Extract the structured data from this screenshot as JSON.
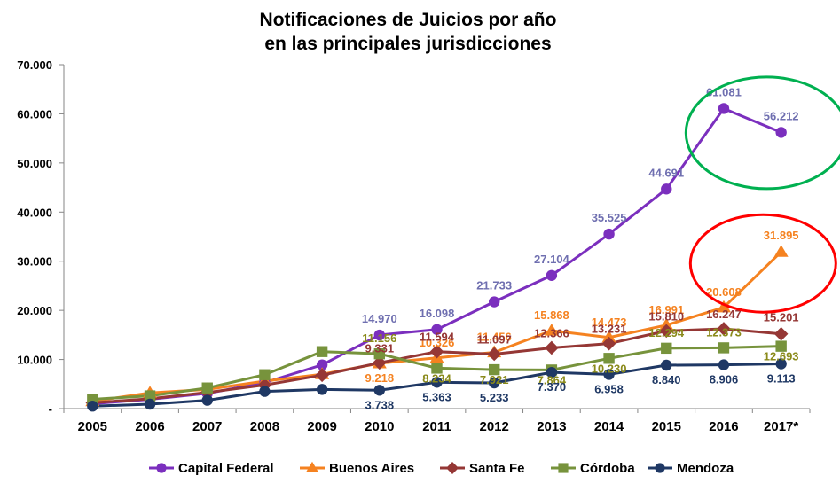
{
  "chart_data": {
    "type": "line",
    "title": [
      "Notificaciones de Juicios por año",
      "en las principales jurisdicciones"
    ],
    "categories": [
      "2005",
      "2006",
      "2007",
      "2008",
      "2009",
      "2010",
      "2011",
      "2012",
      "2013",
      "2014",
      "2015",
      "2016",
      "2017*"
    ],
    "ylim": [
      0,
      70000
    ],
    "yticks": [
      0,
      10000,
      20000,
      30000,
      40000,
      50000,
      60000,
      70000
    ],
    "ytick_labels": [
      "-",
      "10.000",
      "20.000",
      "30.000",
      "40.000",
      "50.000",
      "60.000",
      "70.000"
    ],
    "legend_position": "bottom",
    "series": [
      {
        "name": "Capital Federal",
        "color": "#7b2fbe",
        "label_color": "#6f6fb0",
        "marker": "circle",
        "values": [
          1000,
          1900,
          3100,
          5300,
          8900,
          14970,
          16098,
          21733,
          27104,
          35525,
          44691,
          61081,
          56212
        ],
        "labels": [
          "",
          "",
          "",
          "",
          "",
          "14.970",
          "16.098",
          "21.733",
          "27.104",
          "35.525",
          "44.691",
          "61.081",
          "56.212"
        ]
      },
      {
        "name": "Buenos Aires",
        "color": "#f58220",
        "label_color": "#f58220",
        "marker": "triangle",
        "values": [
          1500,
          3200,
          3900,
          5600,
          7000,
          9218,
          10326,
          11456,
          15868,
          14473,
          16991,
          20608,
          31895
        ],
        "labels": [
          "",
          "",
          "",
          "",
          "",
          "9.218",
          "10.326",
          "11.456",
          "15.868",
          "14.473",
          "16.991",
          "20.608",
          "31.895"
        ]
      },
      {
        "name": "Santa Fe",
        "color": "#953735",
        "label_color": "#953735",
        "marker": "diamond",
        "values": [
          1200,
          2000,
          3300,
          4800,
          6800,
          9331,
          11594,
          11097,
          12366,
          13231,
          15810,
          16247,
          15201
        ],
        "labels": [
          "",
          "",
          "",
          "",
          "",
          "9.331",
          "11.594",
          "11.097",
          "12.366",
          "13.231",
          "15.810",
          "16.247",
          "15.201"
        ]
      },
      {
        "name": "Córdoba",
        "color": "#77933c",
        "label_color": "#8a8a1a",
        "marker": "square",
        "values": [
          1900,
          2600,
          4200,
          6900,
          11600,
          11156,
          8234,
          7921,
          7864,
          10230,
          12294,
          12373,
          12693
        ],
        "labels": [
          "",
          "",
          "",
          "",
          "",
          "11.156",
          "8.234",
          "7.921",
          "7.864",
          "10.230",
          "12.294",
          "12.373",
          "12.693"
        ]
      },
      {
        "name": "Mendoza",
        "color": "#1f3864",
        "label_color": "#1f3864",
        "marker": "circle",
        "values": [
          500,
          900,
          1700,
          3500,
          3900,
          3738,
          5363,
          5233,
          7370,
          6958,
          8840,
          8906,
          9113
        ],
        "labels": [
          "",
          "",
          "",
          "",
          "",
          "3.738",
          "5.363",
          "5.233",
          "7.370",
          "6.958",
          "8.840",
          "8.906",
          "9.113"
        ]
      }
    ],
    "annotations": [
      {
        "shape": "ellipse",
        "color": "#00b050",
        "around": [
          "2016",
          "2017*"
        ],
        "series": "Capital Federal"
      },
      {
        "shape": "ellipse",
        "color": "#ff0000",
        "around": [
          "2016",
          "2017*"
        ],
        "series": "Buenos Aires"
      }
    ]
  }
}
